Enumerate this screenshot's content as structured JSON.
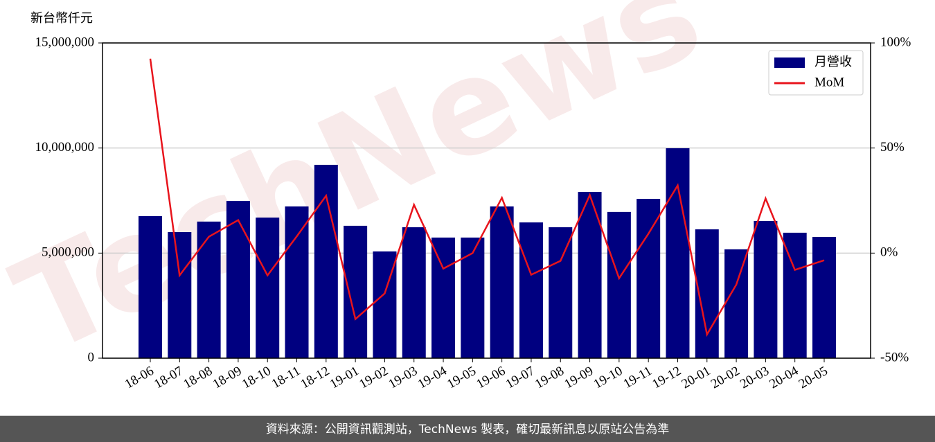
{
  "chart_data": {
    "type": "bar",
    "ylabel": "新台幣仟元",
    "watermark": "TechNews",
    "footer": "資料來源：公開資訊觀測站，TechNews 製表，確切最新訊息以原站公告為準",
    "categories": [
      "18-06",
      "18-07",
      "18-08",
      "18-09",
      "18-10",
      "18-11",
      "18-12",
      "19-01",
      "19-02",
      "19-03",
      "19-04",
      "19-05",
      "19-06",
      "19-07",
      "19-08",
      "19-09",
      "19-10",
      "19-11",
      "19-12",
      "20-01",
      "20-02",
      "20-03",
      "20-04",
      "20-05"
    ],
    "series": [
      {
        "name": "月營收",
        "type": "bar",
        "color": "#000080",
        "values": [
          6760000,
          6000000,
          6500000,
          7480000,
          6690000,
          7220000,
          9200000,
          6300000,
          5080000,
          6230000,
          5740000,
          5740000,
          7220000,
          6460000,
          6230000,
          7910000,
          6960000,
          7580000,
          9990000,
          6130000,
          5180000,
          6530000,
          5970000,
          5770000
        ]
      },
      {
        "name": "MoM",
        "type": "line",
        "axis": "y2",
        "color": "#e8141c",
        "values": [
          92.5,
          -10.6,
          7.8,
          15.7,
          -10.6,
          8,
          27.3,
          -31.4,
          -19.2,
          23,
          -7.4,
          0,
          26.3,
          -10.3,
          -3.7,
          27.6,
          -12,
          9.2,
          32.2,
          -38.7,
          -15,
          26,
          -8,
          -3.4
        ]
      }
    ],
    "ylim": [
      0,
      15000000
    ],
    "yticks": [
      0,
      {
        "value": 5000000,
        "label": "5,000,000"
      },
      {
        "value": 10000000,
        "label": "10,000,000"
      },
      {
        "value": 15000000,
        "label": "15,000,000"
      }
    ],
    "y2lim": [
      -50,
      100
    ],
    "y2ticks": [
      {
        "value": -50,
        "label": "-50%"
      },
      {
        "value": 0,
        "label": "0%"
      },
      {
        "value": 50,
        "label": "50%"
      },
      {
        "value": 100,
        "label": "100%"
      }
    ],
    "grid": true,
    "legend": "upper right"
  }
}
